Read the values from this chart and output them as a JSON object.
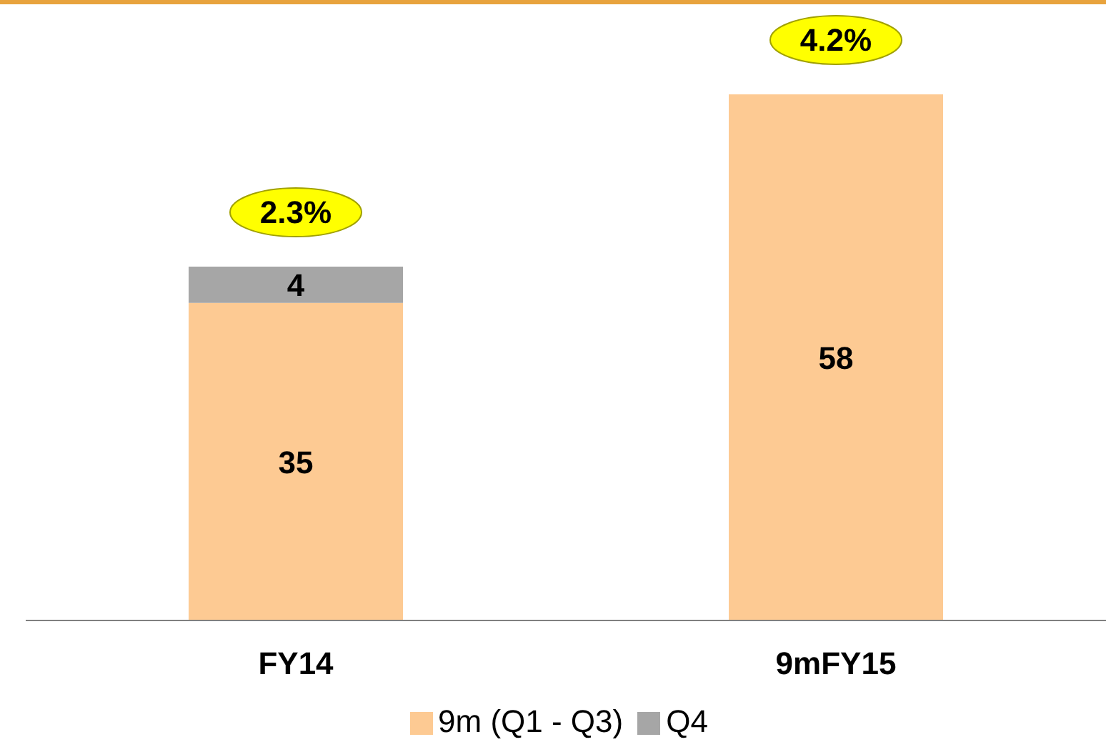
{
  "chart_data": {
    "type": "bar",
    "stacked": true,
    "categories": [
      "FY14",
      "9mFY15"
    ],
    "series": [
      {
        "name": "9m (Q1 - Q3)",
        "color": "#fdca93",
        "values": [
          35,
          58
        ]
      },
      {
        "name": "Q4",
        "color": "#a6a6a6",
        "values": [
          4,
          null
        ]
      }
    ],
    "data_labels": true,
    "legend": "bottom",
    "annotations": [
      {
        "text": "2.3%",
        "x": "FY14",
        "y": 39
      },
      {
        "text": "4.2%",
        "x": "9mFY15",
        "y": 58
      }
    ]
  }
}
